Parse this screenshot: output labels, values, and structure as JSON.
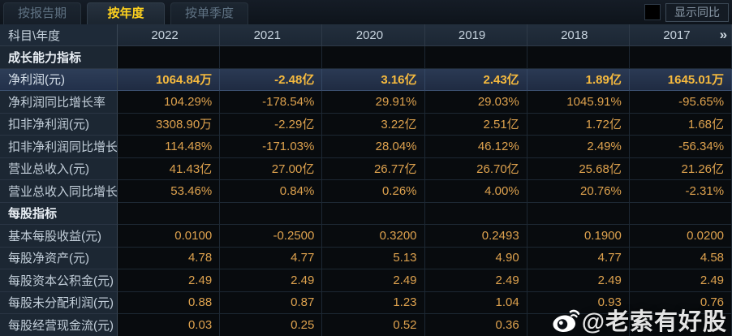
{
  "tabs": [
    {
      "label": "按报告期",
      "active": false
    },
    {
      "label": "按年度",
      "active": true
    },
    {
      "label": "按单季度",
      "active": false
    }
  ],
  "controls": {
    "show_yoy_label": "显示同比",
    "checkbox_checked": false
  },
  "table": {
    "corner_header": "科目\\年度",
    "years": [
      "2022",
      "2021",
      "2020",
      "2019",
      "2018",
      "2017"
    ],
    "more_label": "»",
    "rows": [
      {
        "type": "section",
        "label": "成长能力指标"
      },
      {
        "type": "data",
        "label": "净利润(元)",
        "highlight": true,
        "values": [
          "1064.84万",
          "-2.48亿",
          "3.16亿",
          "2.43亿",
          "1.89亿",
          "1645.01万"
        ]
      },
      {
        "type": "data",
        "label": "净利润同比增长率",
        "values": [
          "104.29%",
          "-178.54%",
          "29.91%",
          "29.03%",
          "1045.91%",
          "-95.65%"
        ]
      },
      {
        "type": "data",
        "label": "扣非净利润(元)",
        "values": [
          "3308.90万",
          "-2.29亿",
          "3.22亿",
          "2.51亿",
          "1.72亿",
          "1.68亿"
        ]
      },
      {
        "type": "data",
        "label": "扣非净利润同比增长率",
        "values": [
          "114.48%",
          "-171.03%",
          "28.04%",
          "46.12%",
          "2.49%",
          "-56.34%"
        ]
      },
      {
        "type": "data",
        "label": "营业总收入(元)",
        "values": [
          "41.43亿",
          "27.00亿",
          "26.77亿",
          "26.70亿",
          "25.68亿",
          "21.26亿"
        ]
      },
      {
        "type": "data",
        "label": "营业总收入同比增长率",
        "values": [
          "53.46%",
          "0.84%",
          "0.26%",
          "4.00%",
          "20.76%",
          "-2.31%"
        ]
      },
      {
        "type": "section",
        "label": "每股指标"
      },
      {
        "type": "data",
        "label": "基本每股收益(元)",
        "values": [
          "0.0100",
          "-0.2500",
          "0.3200",
          "0.2493",
          "0.1900",
          "0.0200"
        ]
      },
      {
        "type": "data",
        "label": "每股净资产(元)",
        "values": [
          "4.78",
          "4.77",
          "5.13",
          "4.90",
          "4.77",
          "4.58"
        ]
      },
      {
        "type": "data",
        "label": "每股资本公积金(元)",
        "values": [
          "2.49",
          "2.49",
          "2.49",
          "2.49",
          "2.49",
          "2.49"
        ]
      },
      {
        "type": "data",
        "label": "每股未分配利润(元)",
        "values": [
          "0.88",
          "0.87",
          "1.23",
          "1.04",
          "0.93",
          "0.76"
        ]
      },
      {
        "type": "data",
        "label": "每股经营现金流(元)",
        "values": [
          "0.03",
          "0.25",
          "0.52",
          "0.36",
          "",
          ""
        ]
      }
    ]
  },
  "watermark": {
    "icon": "weibo-icon",
    "text": "@老索有好股"
  },
  "colors": {
    "accent_gold": "#ffd21e",
    "value_orange": "#dea24e",
    "highlight_value": "#f6ba3e",
    "highlight_row_bg": "#2b3a54",
    "label_column_bg": "#1c2733",
    "header_row_bg": "#1e2a38",
    "data_cell_bg": "#080b0e"
  }
}
